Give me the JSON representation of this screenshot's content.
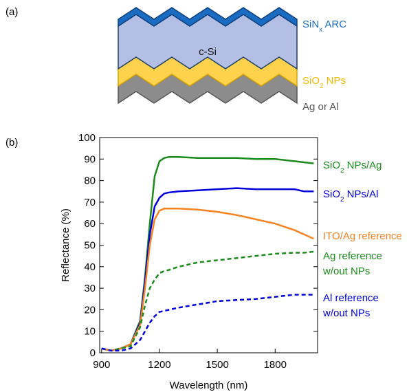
{
  "panel_a": {
    "label": "(a)",
    "layers": {
      "arc": {
        "main": "SiN",
        "sub": "x",
        "tail": " ARC"
      },
      "bulk": "c-Si",
      "nps": {
        "main": "SiO",
        "sub": "2",
        "tail": " NPs"
      },
      "metal": "Ag or Al"
    }
  },
  "chart_data": {
    "type": "line",
    "panel_label": "(b)",
    "x_label": "Wavelength (nm)",
    "y_label": "Reflectance (%)",
    "x": [
      900,
      950,
      1000,
      1050,
      1100,
      1125,
      1150,
      1175,
      1200,
      1225,
      1250,
      1300,
      1400,
      1500,
      1600,
      1700,
      1800,
      1900,
      1950,
      2000
    ],
    "xlim": [
      890,
      2020
    ],
    "xticks": [
      900,
      1200,
      1500,
      1800
    ],
    "ylim": [
      0,
      100
    ],
    "yticks": [
      0,
      10,
      20,
      30,
      40,
      50,
      60,
      70,
      80,
      90,
      100
    ],
    "series": [
      {
        "name": "SiO2 NPs/Ag",
        "color": "#1a8a1a",
        "dash": false,
        "values": [
          2,
          1,
          2,
          4,
          15,
          35,
          60,
          82,
          89,
          90.5,
          91,
          91,
          90.5,
          90.5,
          90.5,
          90,
          90,
          89,
          88.5,
          88
        ]
      },
      {
        "name": "SiO2 NPs/Al",
        "color": "#0000dd",
        "dash": false,
        "values": [
          2,
          1,
          2,
          4,
          14,
          33,
          55,
          68,
          72,
          74,
          74.5,
          75,
          75.5,
          76,
          76.5,
          76,
          76,
          76,
          75,
          75
        ]
      },
      {
        "name": "ITO/Ag reference",
        "color": "#f58220",
        "dash": false,
        "values": [
          2,
          1,
          2,
          4,
          13,
          30,
          50,
          62,
          66,
          67,
          67,
          67,
          66.5,
          65.5,
          64,
          62,
          60,
          57,
          55,
          53
        ]
      },
      {
        "name": "Ag reference\nw/out NPs",
        "color": "#1a8a1a",
        "dash": true,
        "values": [
          2,
          1,
          2,
          3,
          12,
          22,
          30,
          34,
          37,
          38,
          38.5,
          40,
          42,
          43,
          44,
          45,
          46,
          46.5,
          46.5,
          47
        ]
      },
      {
        "name": "Al reference\nw/out NPs",
        "color": "#0000dd",
        "dash": true,
        "values": [
          2,
          1,
          1,
          2,
          6,
          10,
          14,
          17,
          19,
          19.5,
          20,
          21,
          22.5,
          24,
          24.5,
          25,
          26,
          27,
          27,
          27
        ]
      }
    ]
  }
}
